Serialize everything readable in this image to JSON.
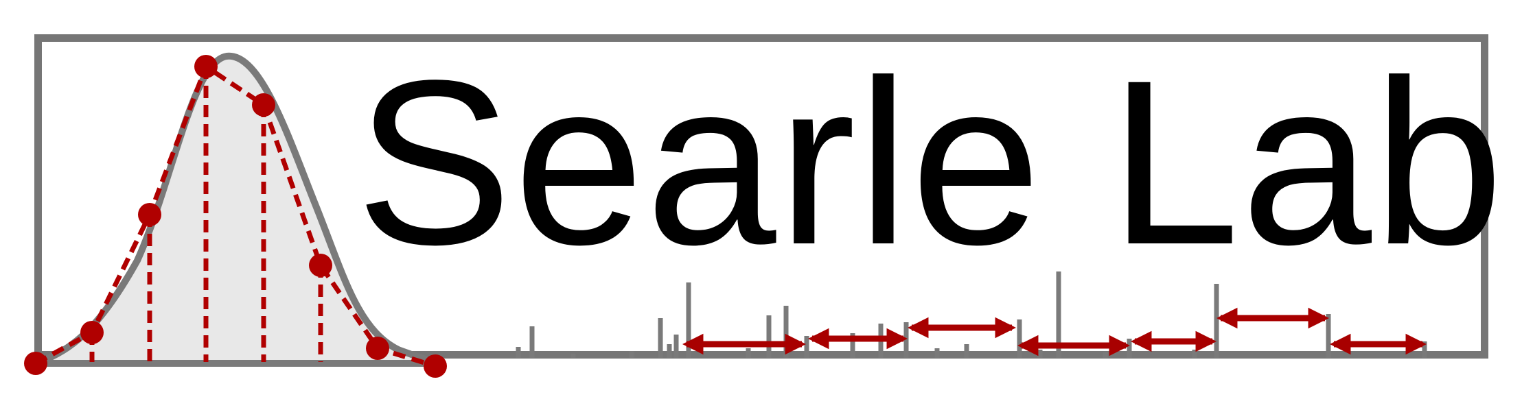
{
  "logo": {
    "wordmark": "Searle Lab",
    "colors": {
      "frame": "#767676",
      "text": "#000000",
      "peak_fill": "#e8e8e8",
      "peak_outline": "#7a7a7a",
      "sample_points": "#b00000",
      "arrows": "#a80000",
      "spectrum_bars": "#7a7a7a"
    },
    "icons": [
      "gaussian-peak-icon",
      "mass-spectrum-icon",
      "window-arrow-icon"
    ]
  }
}
